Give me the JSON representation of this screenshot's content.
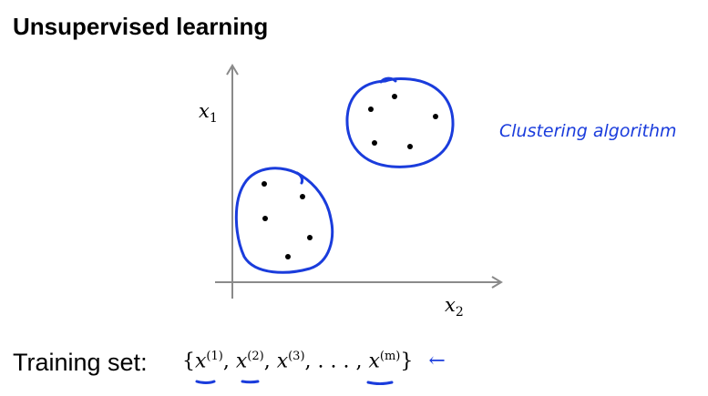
{
  "title": "Unsupervised learning",
  "axes": {
    "y_label": "x",
    "y_sub": "1",
    "x_label": "x",
    "x_sub": "2"
  },
  "annotation": "Clustering algorithm",
  "training": {
    "label": "Training set:",
    "open": "{",
    "x1": "x",
    "x1_sup": "(1)",
    "x2": "x",
    "x2_sup": "(2)",
    "x3": "x",
    "x3_sup": "(3)",
    "dots": ", . . . ,",
    "xm": "x",
    "xm_sup": "(m)",
    "close": "}",
    "arrow": "←"
  },
  "colors": {
    "ink": "#1a3cdc",
    "text": "#000000"
  }
}
